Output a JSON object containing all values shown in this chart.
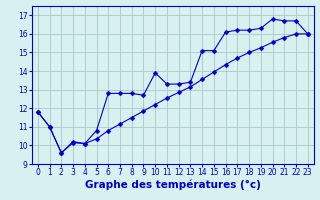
{
  "xlabel": "Graphe des températures (°c)",
  "line1_x": [
    0,
    1,
    2,
    3,
    4,
    5,
    6,
    7,
    8,
    9,
    10,
    11,
    12,
    13,
    14,
    15,
    16,
    17,
    18,
    19,
    20,
    21,
    22,
    23
  ],
  "line1_y": [
    11.8,
    11.0,
    9.6,
    10.2,
    10.1,
    10.8,
    12.8,
    12.8,
    12.8,
    12.7,
    13.9,
    13.3,
    13.3,
    13.4,
    15.1,
    15.1,
    16.1,
    16.2,
    16.2,
    16.3,
    16.8,
    16.7,
    16.7,
    16.0
  ],
  "line2_x": [
    0,
    1,
    2,
    3,
    4,
    5,
    6,
    7,
    8,
    9,
    10,
    11,
    12,
    13,
    14,
    15,
    16,
    17,
    18,
    19,
    20,
    21,
    22,
    23
  ],
  "line2_y": [
    11.8,
    11.0,
    9.6,
    10.15,
    10.1,
    10.35,
    10.8,
    11.15,
    11.5,
    11.85,
    12.2,
    12.55,
    12.85,
    13.15,
    13.55,
    13.95,
    14.35,
    14.7,
    15.0,
    15.25,
    15.55,
    15.8,
    16.0,
    16.0
  ],
  "line_color": "#0000cc",
  "marker": "D",
  "markersize": 2.5,
  "bg_color": "#d8f0f0",
  "grid_color": "#a0c0c0",
  "xlim": [
    -0.5,
    23.5
  ],
  "ylim": [
    9,
    17.5
  ],
  "yticks": [
    9,
    10,
    11,
    12,
    13,
    14,
    15,
    16,
    17
  ],
  "xticks": [
    0,
    1,
    2,
    3,
    4,
    5,
    6,
    7,
    8,
    9,
    10,
    11,
    12,
    13,
    14,
    15,
    16,
    17,
    18,
    19,
    20,
    21,
    22,
    23
  ],
  "tick_fontsize": 5.5,
  "xlabel_fontsize": 7.5
}
